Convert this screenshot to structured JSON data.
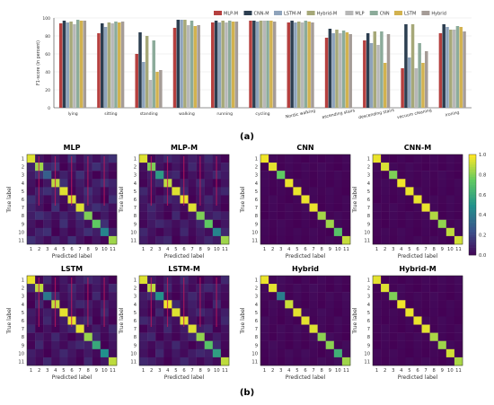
{
  "panel_labels": {
    "a": "(a)",
    "b": "(b)"
  },
  "colors": {
    "MLP-M": "#b5403f",
    "CNN-M": "#2c3e50",
    "LSTM-M": "#8ea3bb",
    "Hybrid-M": "#a6a878",
    "MLP": "#b7b7b7",
    "CNN": "#8cab9a",
    "LSTM": "#d2b24f",
    "Hybrid": "#a59c97",
    "heat_stops": [
      "#440154",
      "#3b528b",
      "#21918c",
      "#5ec962",
      "#fde725"
    ],
    "offdiag_accent": "#c2185b"
  },
  "chart_data": [
    {
      "type": "bar",
      "title": "",
      "xlabel": "",
      "ylabel": "F1-score (in percent)",
      "ylim": [
        0,
        100
      ],
      "yticks": [
        0,
        20,
        40,
        60,
        80,
        100
      ],
      "grid": true,
      "legend_placement": "top-right",
      "categories": [
        "lying",
        "sitting",
        "standing",
        "walking",
        "running",
        "cycling",
        "Nordic walking",
        "ascending stairs",
        "descending stairs",
        "vacuum cleaning",
        "ironing"
      ],
      "series": [
        {
          "name": "MLP-M",
          "values": [
            94,
            83,
            60,
            89,
            95,
            97,
            95,
            78,
            75,
            44,
            83
          ]
        },
        {
          "name": "CNN-M",
          "values": [
            97,
            94,
            84,
            98,
            97,
            97,
            97,
            88,
            83,
            93,
            93
          ]
        },
        {
          "name": "LSTM-M",
          "values": [
            95,
            90,
            51,
            98,
            95,
            96,
            95,
            83,
            72,
            56,
            90
          ]
        },
        {
          "name": "Hybrid-M",
          "values": [
            96,
            95,
            80,
            98,
            97,
            97,
            96,
            87,
            85,
            93,
            87
          ]
        },
        {
          "name": "MLP",
          "values": [
            93,
            94,
            31,
            92,
            95,
            97,
            95,
            83,
            70,
            44,
            87
          ]
        },
        {
          "name": "CNN",
          "values": [
            98,
            96,
            75,
            97,
            97,
            97,
            97,
            86,
            85,
            72,
            91
          ]
        },
        {
          "name": "LSTM",
          "values": [
            97,
            95,
            40,
            91,
            96,
            97,
            96,
            84,
            50,
            50,
            90
          ]
        },
        {
          "name": "Hybrid",
          "values": [
            97,
            96,
            42,
            92,
            96,
            96,
            95,
            82,
            82,
            63,
            85
          ]
        }
      ]
    },
    {
      "type": "heatmap",
      "title": "MLP",
      "xlabel": "Predicted label",
      "ylabel": "True label",
      "labels": [
        "1",
        "2",
        "3",
        "4",
        "5",
        "6",
        "7",
        "8",
        "9",
        "10",
        "11"
      ],
      "diagonal": [
        0.95,
        0.85,
        0.3,
        0.9,
        0.95,
        0.95,
        0.95,
        0.8,
        0.75,
        0.45,
        0.85
      ],
      "offdiag_level": 0.12
    },
    {
      "type": "heatmap",
      "title": "MLP-M",
      "xlabel": "Predicted label",
      "ylabel": "True label",
      "labels": [
        "1",
        "2",
        "3",
        "4",
        "5",
        "6",
        "7",
        "8",
        "9",
        "10",
        "11"
      ],
      "diagonal": [
        0.95,
        0.8,
        0.55,
        0.9,
        0.95,
        0.97,
        0.95,
        0.8,
        0.75,
        0.45,
        0.85
      ],
      "offdiag_level": 0.1
    },
    {
      "type": "heatmap",
      "title": "CNN",
      "xlabel": "Predicted label",
      "ylabel": "True label",
      "labels": [
        "1",
        "2",
        "3",
        "4",
        "5",
        "6",
        "7",
        "8",
        "9",
        "10",
        "11"
      ],
      "diagonal": [
        0.98,
        0.96,
        0.75,
        0.97,
        0.97,
        0.97,
        0.97,
        0.86,
        0.85,
        0.72,
        0.91
      ],
      "offdiag_level": 0.03
    },
    {
      "type": "heatmap",
      "title": "CNN-M",
      "xlabel": "Predicted label",
      "ylabel": "True label",
      "labels": [
        "1",
        "2",
        "3",
        "4",
        "5",
        "6",
        "7",
        "8",
        "9",
        "10",
        "11"
      ],
      "diagonal": [
        0.97,
        0.94,
        0.8,
        0.98,
        0.97,
        0.97,
        0.97,
        0.88,
        0.83,
        0.9,
        0.93
      ],
      "offdiag_level": 0.03
    },
    {
      "type": "heatmap",
      "title": "LSTM",
      "xlabel": "Predicted label",
      "ylabel": "True label",
      "labels": [
        "1",
        "2",
        "3",
        "4",
        "5",
        "6",
        "7",
        "8",
        "9",
        "10",
        "11"
      ],
      "diagonal": [
        0.97,
        0.9,
        0.4,
        0.91,
        0.96,
        0.97,
        0.96,
        0.84,
        0.6,
        0.5,
        0.9
      ],
      "offdiag_level": 0.1
    },
    {
      "type": "heatmap",
      "title": "LSTM-M",
      "xlabel": "Predicted label",
      "ylabel": "True label",
      "labels": [
        "1",
        "2",
        "3",
        "4",
        "5",
        "6",
        "7",
        "8",
        "9",
        "10",
        "11"
      ],
      "diagonal": [
        0.95,
        0.9,
        0.51,
        0.98,
        0.95,
        0.96,
        0.95,
        0.83,
        0.72,
        0.56,
        0.9
      ],
      "offdiag_level": 0.1
    },
    {
      "type": "heatmap",
      "title": "Hybrid",
      "xlabel": "Predicted label",
      "ylabel": "True label",
      "labels": [
        "1",
        "2",
        "3",
        "4",
        "5",
        "6",
        "7",
        "8",
        "9",
        "10",
        "11"
      ],
      "diagonal": [
        0.97,
        0.96,
        0.42,
        0.92,
        0.96,
        0.96,
        0.95,
        0.82,
        0.82,
        0.63,
        0.85
      ],
      "offdiag_level": 0.04
    },
    {
      "type": "heatmap",
      "title": "Hybrid-M",
      "xlabel": "Predicted label",
      "ylabel": "True label",
      "labels": [
        "1",
        "2",
        "3",
        "4",
        "5",
        "6",
        "7",
        "8",
        "9",
        "10",
        "11"
      ],
      "diagonal": [
        0.96,
        0.95,
        0.8,
        0.98,
        0.97,
        0.97,
        0.96,
        0.87,
        0.85,
        0.93,
        0.87
      ],
      "offdiag_level": 0.03
    }
  ],
  "colorbar": {
    "ticks": [
      "0.0",
      "0.2",
      "0.4",
      "0.6",
      "0.8",
      "1.0"
    ],
    "range": [
      0,
      1
    ]
  }
}
